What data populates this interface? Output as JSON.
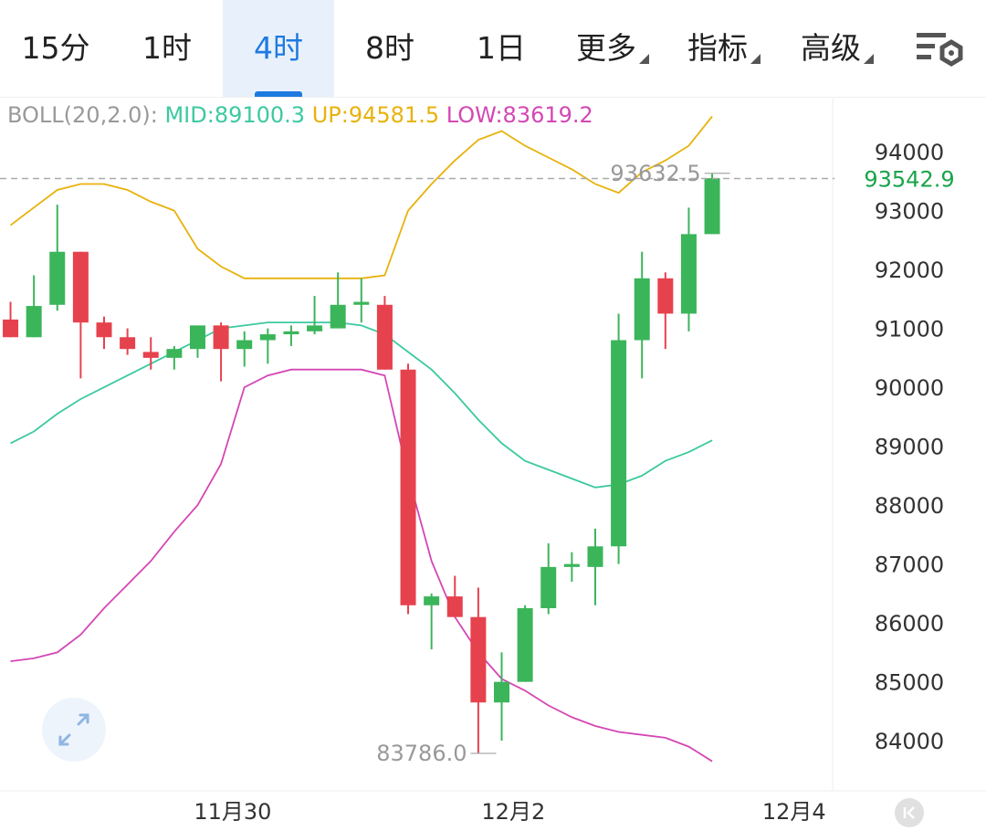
{
  "tabs": [
    {
      "label": "15分",
      "active": false,
      "dropdown": false
    },
    {
      "label": "1时",
      "active": false,
      "dropdown": false
    },
    {
      "label": "4时",
      "active": true,
      "dropdown": false
    },
    {
      "label": "8时",
      "active": false,
      "dropdown": false
    },
    {
      "label": "1日",
      "active": false,
      "dropdown": false
    },
    {
      "label": "更多",
      "active": false,
      "dropdown": true
    },
    {
      "label": "指标",
      "active": false,
      "dropdown": true
    },
    {
      "label": "高级",
      "active": false,
      "dropdown": true
    }
  ],
  "settings_icon": "chart-settings-icon",
  "legend": {
    "name": "BOLL(20,2.0):",
    "mid": "MID:89100.3",
    "up": "UP:94581.5",
    "low": "LOW:83619.2"
  },
  "expand_icon": "expand-arrows-icon",
  "collapse_icon": "collapse-arrow-icon",
  "colors": {
    "up_candle": "#3bb55a",
    "down_candle": "#e6424e",
    "mid": "#3cc9a0",
    "upper": "#e8b20c",
    "lower": "#d447b5",
    "axis_text": "#333333",
    "current_price": "#1aa34a"
  },
  "chart_data": {
    "type": "candlestick",
    "ylim": [
      83150,
      94900
    ],
    "yticks": [
      94000,
      93000,
      92000,
      91000,
      90000,
      89000,
      88000,
      87000,
      86000,
      85000,
      84000
    ],
    "xticks": [
      {
        "label": "11月30",
        "index": 9.5
      },
      {
        "label": "12月2",
        "index": 21.5
      },
      {
        "label": "12月4",
        "index": 33.5
      }
    ],
    "x_index_range": [
      -0.45,
      35.15
    ],
    "current_price": 93542.9,
    "current_price_label": "93542.9",
    "max_label": "93632.5",
    "max_value": 93632.5,
    "max_index": 31,
    "min_label": "83786.0",
    "min_value": 83786.0,
    "min_index": 21,
    "candles": [
      {
        "o": 91150,
        "c": 90850,
        "h": 91450,
        "l": 90850
      },
      {
        "o": 90850,
        "c": 91380,
        "h": 91900,
        "l": 90850
      },
      {
        "o": 91400,
        "c": 92300,
        "h": 93100,
        "l": 91300
      },
      {
        "o": 92300,
        "c": 91100,
        "h": 92300,
        "l": 90150
      },
      {
        "o": 91100,
        "c": 90850,
        "h": 91200,
        "l": 90650
      },
      {
        "o": 90850,
        "c": 90650,
        "h": 91000,
        "l": 90550
      },
      {
        "o": 90600,
        "c": 90500,
        "h": 90850,
        "l": 90300
      },
      {
        "o": 90500,
        "c": 90650,
        "h": 90700,
        "l": 90300
      },
      {
        "o": 90650,
        "c": 91050,
        "h": 91050,
        "l": 90500
      },
      {
        "o": 91050,
        "c": 90650,
        "h": 91100,
        "l": 90100
      },
      {
        "o": 90650,
        "c": 90800,
        "h": 90950,
        "l": 90350
      },
      {
        "o": 90800,
        "c": 90900,
        "h": 91000,
        "l": 90400
      },
      {
        "o": 90900,
        "c": 90950,
        "h": 91050,
        "l": 90700
      },
      {
        "o": 90950,
        "c": 91050,
        "h": 91550,
        "l": 90900
      },
      {
        "o": 91000,
        "c": 91400,
        "h": 91950,
        "l": 91000
      },
      {
        "o": 91400,
        "c": 91450,
        "h": 91850,
        "l": 91100
      },
      {
        "o": 91400,
        "c": 90300,
        "h": 91550,
        "l": 90300
      },
      {
        "o": 90300,
        "c": 86300,
        "h": 90400,
        "l": 86150
      },
      {
        "o": 86300,
        "c": 86450,
        "h": 86500,
        "l": 85550
      },
      {
        "o": 86450,
        "c": 86100,
        "h": 86800,
        "l": 86100
      },
      {
        "o": 86100,
        "c": 84650,
        "h": 86600,
        "l": 83786
      },
      {
        "o": 84650,
        "c": 85000,
        "h": 85500,
        "l": 84000
      },
      {
        "o": 85000,
        "c": 86250,
        "h": 86300,
        "l": 85000
      },
      {
        "o": 86250,
        "c": 86950,
        "h": 87350,
        "l": 86150
      },
      {
        "o": 86950,
        "c": 87000,
        "h": 87200,
        "l": 86700
      },
      {
        "o": 86950,
        "c": 87300,
        "h": 87600,
        "l": 86300
      },
      {
        "o": 87300,
        "c": 90800,
        "h": 91250,
        "l": 87000
      },
      {
        "o": 90800,
        "c": 91850,
        "h": 92300,
        "l": 90150
      },
      {
        "o": 91850,
        "c": 91250,
        "h": 91950,
        "l": 90650
      },
      {
        "o": 91250,
        "c": 92600,
        "h": 93050,
        "l": 90950
      },
      {
        "o": 92600,
        "c": 93550,
        "h": 93632.5,
        "l": 92600
      }
    ],
    "series": [
      {
        "name": "MID",
        "values": [
          89050,
          89250,
          89550,
          89800,
          90000,
          90200,
          90400,
          90600,
          90800,
          91000,
          91050,
          91100,
          91100,
          91100,
          91100,
          91050,
          90900,
          90600,
          90300,
          89900,
          89450,
          89050,
          88750,
          88600,
          88450,
          88300,
          88350,
          88500,
          88750,
          88900,
          89100
        ]
      },
      {
        "name": "UP",
        "values": [
          92750,
          93050,
          93350,
          93450,
          93450,
          93350,
          93150,
          93000,
          92350,
          92050,
          91850,
          91850,
          91850,
          91850,
          91850,
          91850,
          91900,
          93000,
          93450,
          93850,
          94200,
          94350,
          94100,
          93900,
          93700,
          93450,
          93300,
          93650,
          93850,
          94100,
          94600
        ]
      },
      {
        "name": "LOW",
        "values": [
          85350,
          85400,
          85500,
          85800,
          86250,
          86650,
          87050,
          87550,
          88000,
          88700,
          90000,
          90200,
          90300,
          90300,
          90300,
          90300,
          90200,
          88500,
          87050,
          86100,
          85500,
          85050,
          84850,
          84600,
          84400,
          84250,
          84150,
          84100,
          84050,
          83900,
          83650
        ]
      }
    ]
  }
}
